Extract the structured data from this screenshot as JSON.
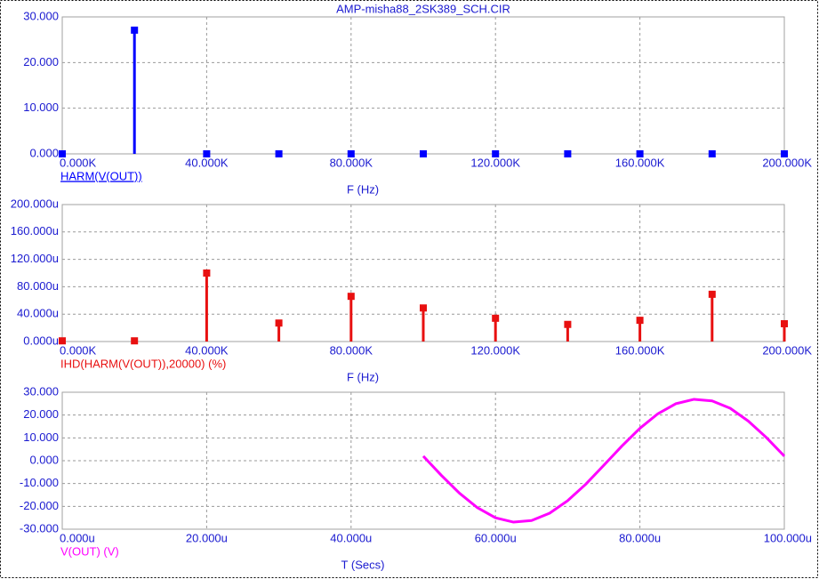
{
  "chart_data": [
    {
      "type": "stem",
      "title": "AMP-misha88_2SK389_SCH.CIR",
      "x_label": "F (Hz)",
      "x": [
        0,
        20000,
        40000,
        60000,
        80000,
        100000,
        120000,
        140000,
        160000,
        180000,
        200000
      ],
      "series": [
        {
          "name": "HARM(V(OUT))",
          "color": "#0000ff",
          "values": [
            0,
            27.1,
            0,
            0,
            0,
            0,
            0,
            0,
            0,
            0,
            0
          ]
        }
      ],
      "xlim": [
        0,
        200000
      ],
      "xticks": [
        {
          "value": 0,
          "label": "0.000K"
        },
        {
          "value": 40000,
          "label": "40.000K"
        },
        {
          "value": 80000,
          "label": "80.000K"
        },
        {
          "value": 120000,
          "label": "120.000K"
        },
        {
          "value": 160000,
          "label": "160.000K"
        },
        {
          "value": 200000,
          "label": "200.000K"
        }
      ],
      "ylim": [
        0,
        30
      ],
      "yticks": [
        {
          "value": 0,
          "label": "0.000"
        },
        {
          "value": 10,
          "label": "10.000"
        },
        {
          "value": 20,
          "label": "20.000"
        },
        {
          "value": 30,
          "label": "30.000"
        }
      ],
      "grid": true
    },
    {
      "type": "stem",
      "x_label": "F (Hz)",
      "x": [
        0,
        20000,
        40000,
        60000,
        80000,
        100000,
        120000,
        140000,
        160000,
        180000,
        200000
      ],
      "series": [
        {
          "name": "IHD(HARM(V(OUT)),20000) (%)",
          "color": "#e81010",
          "values": [
            1,
            1,
            100,
            27,
            66,
            49,
            34,
            25,
            31,
            69,
            26
          ]
        }
      ],
      "xlim": [
        0,
        200000
      ],
      "xticks": [
        {
          "value": 0,
          "label": "0.000K"
        },
        {
          "value": 40000,
          "label": "40.000K"
        },
        {
          "value": 80000,
          "label": "80.000K"
        },
        {
          "value": 120000,
          "label": "120.000K"
        },
        {
          "value": 160000,
          "label": "160.000K"
        },
        {
          "value": 200000,
          "label": "200.000K"
        }
      ],
      "ylim": [
        0,
        200
      ],
      "yticks": [
        {
          "value": 0,
          "label": "0.000u"
        },
        {
          "value": 40,
          "label": "40.000u"
        },
        {
          "value": 80,
          "label": "80.000u"
        },
        {
          "value": 120,
          "label": "120.000u"
        },
        {
          "value": 160,
          "label": "160.000u"
        },
        {
          "value": 200,
          "label": "200.000u"
        }
      ],
      "grid": true
    },
    {
      "type": "line",
      "x_label": "T (Secs)",
      "x": [
        50,
        52.5,
        55,
        57.5,
        60,
        62.5,
        65,
        67.5,
        70,
        72.5,
        75,
        77.5,
        80,
        82.5,
        85,
        87.5,
        90,
        92.5,
        95,
        97.5,
        100
      ],
      "series": [
        {
          "name": "V(OUT) (V)",
          "color": "#ff00ff",
          "values": [
            2.0,
            -6.4,
            -14.2,
            -20.6,
            -25.0,
            -26.9,
            -26.2,
            -23.0,
            -17.5,
            -10.3,
            -2.0,
            6.4,
            14.2,
            20.6,
            25.0,
            26.9,
            26.2,
            23.0,
            17.4,
            10.2,
            2.0
          ]
        }
      ],
      "xlim": [
        0,
        100
      ],
      "xticks": [
        {
          "value": 0,
          "label": "0.000u"
        },
        {
          "value": 20,
          "label": "20.000u"
        },
        {
          "value": 40,
          "label": "40.000u"
        },
        {
          "value": 60,
          "label": "60.000u"
        },
        {
          "value": 80,
          "label": "80.000u"
        },
        {
          "value": 100,
          "label": "100.000u"
        }
      ],
      "ylim": [
        -30,
        30
      ],
      "yticks": [
        {
          "value": -30,
          "label": "-30.000"
        },
        {
          "value": -20,
          "label": "-20.000"
        },
        {
          "value": -10,
          "label": "-10.000"
        },
        {
          "value": 0,
          "label": "0.000"
        },
        {
          "value": 10,
          "label": "10.000"
        },
        {
          "value": 20,
          "label": "20.000"
        },
        {
          "value": 30,
          "label": "30.000"
        }
      ],
      "grid": true
    }
  ]
}
